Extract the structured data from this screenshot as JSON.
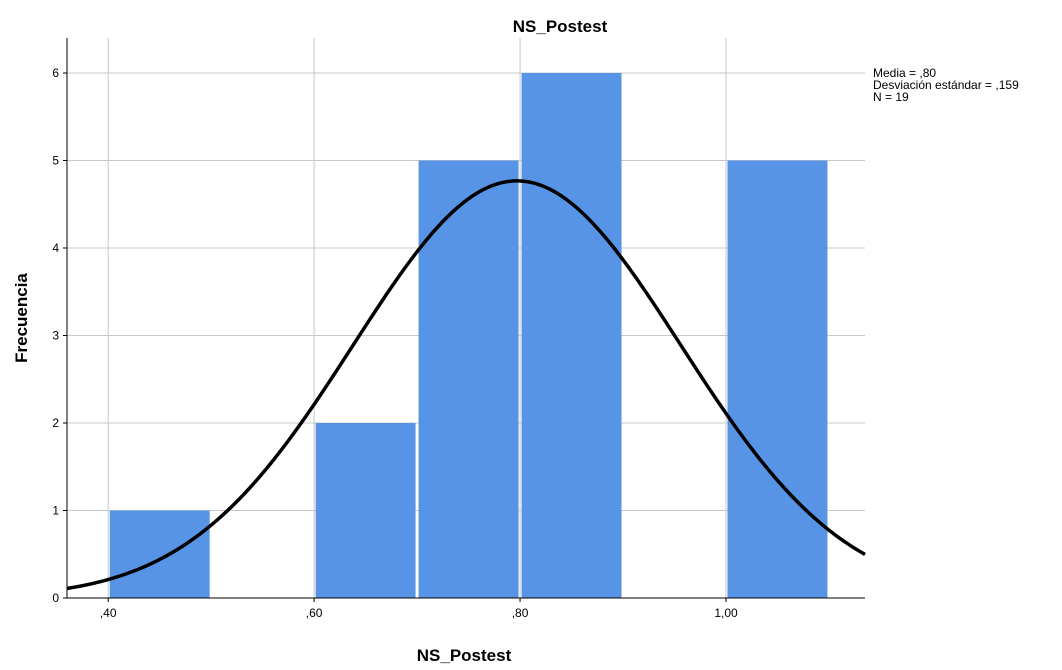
{
  "chart_data": {
    "type": "bar",
    "subtype": "histogram",
    "title": "NS_Postest",
    "xlabel": "NS_Postest",
    "ylabel": "Frecuencia",
    "bins": [
      {
        "start": 0.4,
        "end": 0.5,
        "count": 1
      },
      {
        "start": 0.5,
        "end": 0.6,
        "count": 0
      },
      {
        "start": 0.6,
        "end": 0.7,
        "count": 2
      },
      {
        "start": 0.7,
        "end": 0.8,
        "count": 5
      },
      {
        "start": 0.8,
        "end": 0.9,
        "count": 6
      },
      {
        "start": 0.9,
        "end": 1.0,
        "count": 0
      },
      {
        "start": 1.0,
        "end": 1.1,
        "count": 5
      }
    ],
    "xlim": [
      0.36,
      1.135
    ],
    "ylim": [
      0,
      6.4
    ],
    "x_ticks": [
      {
        "value": 0.4,
        "label": ",40"
      },
      {
        "value": 0.6,
        "label": ",60"
      },
      {
        "value": 0.8,
        "label": ",80"
      },
      {
        "value": 1.0,
        "label": "1,00"
      }
    ],
    "y_ticks": [
      {
        "value": 0,
        "label": "0"
      },
      {
        "value": 1,
        "label": "1"
      },
      {
        "value": 2,
        "label": "2"
      },
      {
        "value": 3,
        "label": "3"
      },
      {
        "value": 4,
        "label": "4"
      },
      {
        "value": 5,
        "label": "5"
      },
      {
        "value": 6,
        "label": "6"
      }
    ],
    "normal_curve": {
      "mean": 0.797,
      "sd": 0.159,
      "n": 19,
      "bin_width": 0.1
    },
    "grid": true,
    "bar_color": "#5794e6",
    "curve_color": "#000000",
    "grid_color": "#c8c8c8",
    "stats": {
      "position": "top-right",
      "lines": [
        "Media = ,80",
        "Desviación estándar = ,159",
        "N = 19"
      ]
    }
  }
}
